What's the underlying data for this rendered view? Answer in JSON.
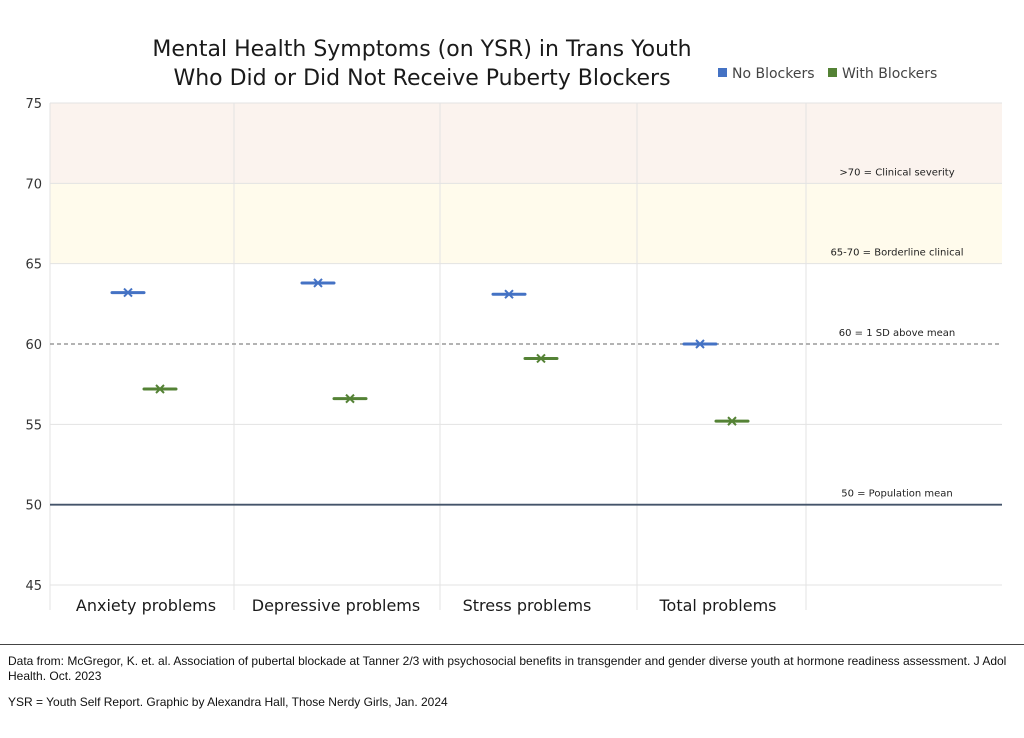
{
  "chart_data": {
    "type": "scatter",
    "title": [
      "Mental Health Symptoms (on YSR) in Trans Youth",
      "Who Did or Did Not Receive Puberty Blockers"
    ],
    "categories": [
      "Anxiety problems",
      "Depressive problems",
      "Stress problems",
      "Total problems"
    ],
    "series": [
      {
        "name": "No Blockers",
        "color": "#4472C4",
        "values": [
          63.2,
          63.8,
          63.1,
          60.0
        ]
      },
      {
        "name": "With Blockers",
        "color": "#548235",
        "values": [
          57.2,
          56.6,
          59.1,
          55.2
        ]
      }
    ],
    "ylim": [
      45,
      75
    ],
    "yticks": [
      45,
      50,
      55,
      60,
      65,
      70,
      75
    ],
    "bands": [
      {
        "from": 70,
        "to": 75,
        "color": "#FBF3EE"
      },
      {
        "from": 65,
        "to": 70,
        "color": "#FFFBEC"
      }
    ],
    "reference_lines": [
      {
        "value": 60,
        "style": "dashed",
        "label": "60 = 1 SD above mean"
      },
      {
        "value": 50,
        "style": "solid",
        "label": "50 = Population mean"
      }
    ],
    "band_labels": [
      {
        "value": 70,
        "label": ">70 = Clinical severity"
      },
      {
        "value": 65,
        "label": "65-70 = Borderline clinical"
      }
    ],
    "legend": "top-right",
    "grid": true
  },
  "footer": {
    "source": "Data from:  McGregor, K. et. al. Association of pubertal blockade at Tanner 2/3 with psychosocial benefits in transgender and gender diverse youth at hormone readiness assessment.  J Adol Health. Oct. 2023",
    "credit": "YSR = Youth Self Report.  Graphic by Alexandra Hall, Those Nerdy Girls, Jan. 2024"
  }
}
